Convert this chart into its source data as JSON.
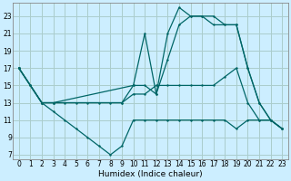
{
  "xlabel": "Humidex (Indice chaleur)",
  "background_color": "#cceeff",
  "grid_color": "#aacccc",
  "line_color": "#006666",
  "xlim": [
    -0.5,
    23.5
  ],
  "ylim": [
    6.5,
    24.5
  ],
  "xticks": [
    0,
    1,
    2,
    3,
    4,
    5,
    6,
    7,
    8,
    9,
    10,
    11,
    12,
    13,
    14,
    15,
    16,
    17,
    18,
    19,
    20,
    21,
    22,
    23
  ],
  "yticks": [
    7,
    9,
    11,
    13,
    15,
    17,
    19,
    21,
    23
  ],
  "line1_x": [
    0,
    1,
    2,
    3,
    4,
    5,
    6,
    7,
    8,
    9,
    10,
    11,
    12,
    13,
    14,
    15,
    16,
    17,
    18,
    19,
    20,
    21,
    22,
    23
  ],
  "line1_y": [
    17,
    15,
    13,
    12,
    11,
    10,
    9,
    8,
    7,
    8,
    11,
    11,
    11,
    11,
    11,
    11,
    11,
    11,
    11,
    10,
    11,
    11,
    11,
    10
  ],
  "line2_x": [
    0,
    1,
    2,
    3,
    4,
    5,
    6,
    7,
    8,
    9,
    10,
    11,
    12,
    13,
    14,
    15,
    16,
    17,
    18,
    19,
    20,
    21,
    22,
    23
  ],
  "line2_y": [
    17,
    15,
    13,
    13,
    13,
    13,
    13,
    13,
    13,
    13,
    14,
    14,
    15,
    15,
    15,
    15,
    15,
    15,
    16,
    17,
    13,
    11,
    11,
    10
  ],
  "line3_x": [
    0,
    1,
    2,
    3,
    9,
    10,
    11,
    12,
    13,
    14,
    15,
    16,
    17,
    18,
    19,
    20,
    21,
    22,
    23
  ],
  "line3_y": [
    17,
    15,
    13,
    13,
    13,
    15,
    15,
    14,
    18,
    22,
    23,
    23,
    22,
    22,
    22,
    17,
    13,
    11,
    10
  ],
  "line4_x": [
    0,
    2,
    3,
    10,
    11,
    12,
    13,
    14,
    15,
    16,
    17,
    18,
    19,
    20,
    21,
    22,
    23
  ],
  "line4_y": [
    17,
    13,
    13,
    15,
    21,
    14,
    21,
    24,
    23,
    23,
    23,
    22,
    22,
    17,
    13,
    11,
    10
  ]
}
